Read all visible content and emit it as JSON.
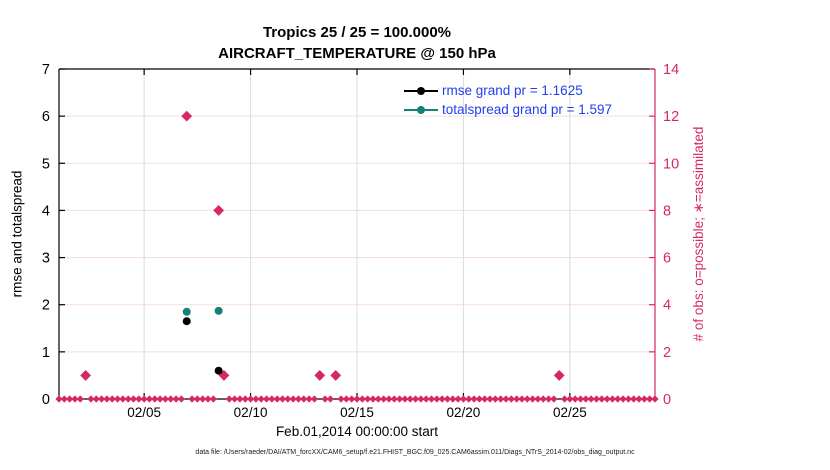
{
  "figure": {
    "title": "Tropics 25 / 25 = 100.000%",
    "subtitle": "AIRCRAFT_TEMPERATURE @ 150 hPa",
    "xlabel": "Feb.01,2014 00:00:00 start",
    "ylabel_left": "rmse and totalspread",
    "ylabel_right": "# of obs: o=possible; ∗=assimilated",
    "footer": "data file: /Users/raeder/DAI/ATM_forcXX/CAM6_setup/f.e21.FHIST_BGC.f09_025.CAM6assim.011/Diags_NTrS_2014-02/obs_diag_output.nc"
  },
  "colors": {
    "rmse": "#000000",
    "totalspread": "#128178",
    "obs": "#d62964",
    "legend_text": "#2240ee",
    "grid_h": "#f5dbe4",
    "grid_v": "#dcdcdc",
    "axis_black": "#000000"
  },
  "chart_data": {
    "type": "scatter",
    "title": "Tropics 25 / 25 = 100.000%",
    "subtitle": "AIRCRAFT_TEMPERATURE @ 150 hPa",
    "xlabel": "Feb.01,2014 00:00:00 start",
    "ylabel_left": "rmse and totalspread",
    "ylabel_right": "# of obs: o=possible; ∗=assimilated",
    "x_start": "Feb.01,2014 00:00:00",
    "x_span_days": 28,
    "x_ticks": [
      {
        "label": "02/05",
        "day": 4
      },
      {
        "label": "02/10",
        "day": 9
      },
      {
        "label": "02/15",
        "day": 14
      },
      {
        "label": "02/20",
        "day": 19
      },
      {
        "label": "02/25",
        "day": 24
      }
    ],
    "ylim_left": [
      0,
      7
    ],
    "left_ticks": [
      0,
      1,
      2,
      3,
      4,
      5,
      6,
      7
    ],
    "ylim_right": [
      0,
      14
    ],
    "right_ticks": [
      0,
      2,
      4,
      6,
      8,
      10,
      12,
      14
    ],
    "grid": true,
    "legend_position": "top-right-inside",
    "series": [
      {
        "name": "rmse",
        "legend": "rmse grand pr = 1.1625",
        "grand_value": 1.1625,
        "axis": "left",
        "color_key": "rmse",
        "marker": "circle",
        "points": [
          {
            "day": 6.0,
            "value": 1.65
          },
          {
            "day": 7.5,
            "value": 0.6
          }
        ]
      },
      {
        "name": "totalspread",
        "legend": "totalspread grand pr = 1.597",
        "grand_value": 1.597,
        "axis": "right_legend_only_false",
        "color_key": "totalspread",
        "marker": "circle",
        "points": [
          {
            "day": 6.0,
            "value": 1.85
          },
          {
            "day": 7.5,
            "value": 1.87
          }
        ]
      },
      {
        "name": "obs-count",
        "legend": null,
        "axis": "right",
        "color_key": "obs",
        "marker": "diamond",
        "points": [
          {
            "day": 1.25,
            "value": 1
          },
          {
            "day": 6.0,
            "value": 12
          },
          {
            "day": 7.5,
            "value": 8
          },
          {
            "day": 7.75,
            "value": 1
          },
          {
            "day": 12.25,
            "value": 1
          },
          {
            "day": 13.0,
            "value": 1
          },
          {
            "day": 23.5,
            "value": 1
          }
        ],
        "zero_baseline": {
          "step_days": 0.25,
          "value": 0
        }
      }
    ]
  }
}
